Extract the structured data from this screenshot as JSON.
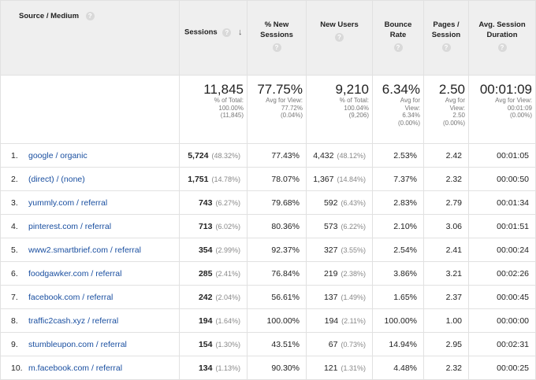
{
  "headers": {
    "source_medium": "Source / Medium",
    "sessions": "Sessions",
    "new_sessions_l1": "% New",
    "new_sessions_l2": "Sessions",
    "new_users": "New Users",
    "bounce_l1": "Bounce",
    "bounce_l2": "Rate",
    "pages_l1": "Pages /",
    "pages_l2": "Session",
    "duration_l1": "Avg. Session",
    "duration_l2": "Duration",
    "help_glyph": "?",
    "sort_glyph": "↓"
  },
  "totals": {
    "sessions": {
      "value": "11,845",
      "l1": "% of Total:",
      "l2": "100.00%",
      "l3": "(11,845)"
    },
    "new_sessions": {
      "value": "77.75%",
      "l1": "Avg for View:",
      "l2": "77.72%",
      "l3": "(0.04%)"
    },
    "new_users": {
      "value": "9,210",
      "l1": "% of Total:",
      "l2": "100.04%",
      "l3": "(9,206)"
    },
    "bounce": {
      "value": "6.34%",
      "l1": "Avg for",
      "l2": "View:",
      "l3": "6.34%",
      "l4": "(0.00%)"
    },
    "pages": {
      "value": "2.50",
      "l1": "Avg for",
      "l2": "View:",
      "l3": "2.50",
      "l4": "(0.00%)"
    },
    "duration": {
      "value": "00:01:09",
      "l1": "Avg for View:",
      "l2": "00:01:09",
      "l3": "(0.00%)"
    }
  },
  "rows": [
    {
      "idx": "1.",
      "source": "google / organic",
      "sessions": "5,724",
      "sessions_pct": "(48.32%)",
      "new_sessions": "77.43%",
      "new_users": "4,432",
      "new_users_pct": "(48.12%)",
      "bounce": "2.53%",
      "pages": "2.42",
      "duration": "00:01:05"
    },
    {
      "idx": "2.",
      "source": "(direct) / (none)",
      "sessions": "1,751",
      "sessions_pct": "(14.78%)",
      "new_sessions": "78.07%",
      "new_users": "1,367",
      "new_users_pct": "(14.84%)",
      "bounce": "7.37%",
      "pages": "2.32",
      "duration": "00:00:50"
    },
    {
      "idx": "3.",
      "source": "yummly.com / referral",
      "sessions": "743",
      "sessions_pct": "(6.27%)",
      "new_sessions": "79.68%",
      "new_users": "592",
      "new_users_pct": "(6.43%)",
      "bounce": "2.83%",
      "pages": "2.79",
      "duration": "00:01:34"
    },
    {
      "idx": "4.",
      "source": "pinterest.com / referral",
      "sessions": "713",
      "sessions_pct": "(6.02%)",
      "new_sessions": "80.36%",
      "new_users": "573",
      "new_users_pct": "(6.22%)",
      "bounce": "2.10%",
      "pages": "3.06",
      "duration": "00:01:51"
    },
    {
      "idx": "5.",
      "source": "www2.smartbrief.com / referral",
      "sessions": "354",
      "sessions_pct": "(2.99%)",
      "new_sessions": "92.37%",
      "new_users": "327",
      "new_users_pct": "(3.55%)",
      "bounce": "2.54%",
      "pages": "2.41",
      "duration": "00:00:24"
    },
    {
      "idx": "6.",
      "source": "foodgawker.com / referral",
      "sessions": "285",
      "sessions_pct": "(2.41%)",
      "new_sessions": "76.84%",
      "new_users": "219",
      "new_users_pct": "(2.38%)",
      "bounce": "3.86%",
      "pages": "3.21",
      "duration": "00:02:26"
    },
    {
      "idx": "7.",
      "source": "facebook.com / referral",
      "sessions": "242",
      "sessions_pct": "(2.04%)",
      "new_sessions": "56.61%",
      "new_users": "137",
      "new_users_pct": "(1.49%)",
      "bounce": "1.65%",
      "pages": "2.37",
      "duration": "00:00:45"
    },
    {
      "idx": "8.",
      "source": "traffic2cash.xyz / referral",
      "sessions": "194",
      "sessions_pct": "(1.64%)",
      "new_sessions": "100.00%",
      "new_users": "194",
      "new_users_pct": "(2.11%)",
      "bounce": "100.00%",
      "pages": "1.00",
      "duration": "00:00:00"
    },
    {
      "idx": "9.",
      "source": "stumbleupon.com / referral",
      "sessions": "154",
      "sessions_pct": "(1.30%)",
      "new_sessions": "43.51%",
      "new_users": "67",
      "new_users_pct": "(0.73%)",
      "bounce": "14.94%",
      "pages": "2.95",
      "duration": "00:02:31"
    },
    {
      "idx": "10.",
      "source": "m.facebook.com / referral",
      "sessions": "134",
      "sessions_pct": "(1.13%)",
      "new_sessions": "90.30%",
      "new_users": "121",
      "new_users_pct": "(1.31%)",
      "bounce": "4.48%",
      "pages": "2.32",
      "duration": "00:00:25"
    }
  ]
}
